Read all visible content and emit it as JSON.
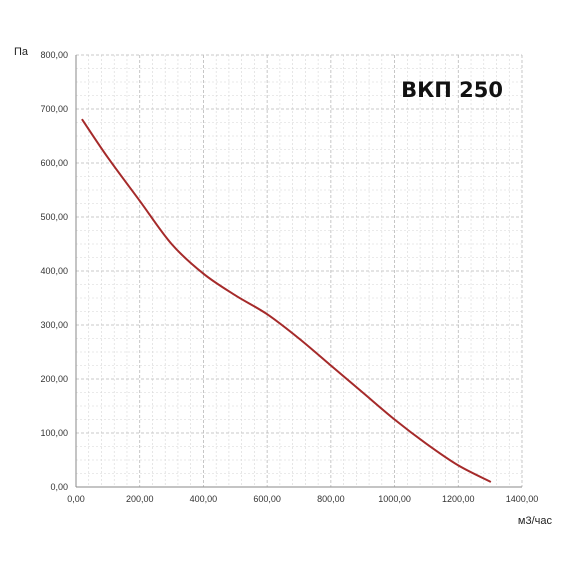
{
  "chart_data": {
    "type": "line",
    "title": "ВКП 250",
    "xlabel": "м3/час",
    "ylabel": "Па",
    "xlim": [
      0,
      1400
    ],
    "ylim": [
      0,
      800
    ],
    "x_ticks": [
      "0,00",
      "200,00",
      "400,00",
      "600,00",
      "800,00",
      "1000,00",
      "1200,00",
      "1400,00"
    ],
    "y_ticks": [
      "0,00",
      "100,00",
      "200,00",
      "300,00",
      "400,00",
      "500,00",
      "600,00",
      "700,00",
      "800,00"
    ],
    "grid": true,
    "series": [
      {
        "color": "#a52a2a",
        "x": [
          20,
          100,
          200,
          300,
          400,
          500,
          600,
          700,
          800,
          900,
          1000,
          1100,
          1200,
          1300
        ],
        "y": [
          680,
          610,
          530,
          450,
          395,
          355,
          320,
          275,
          225,
          175,
          125,
          80,
          40,
          10
        ]
      }
    ]
  }
}
